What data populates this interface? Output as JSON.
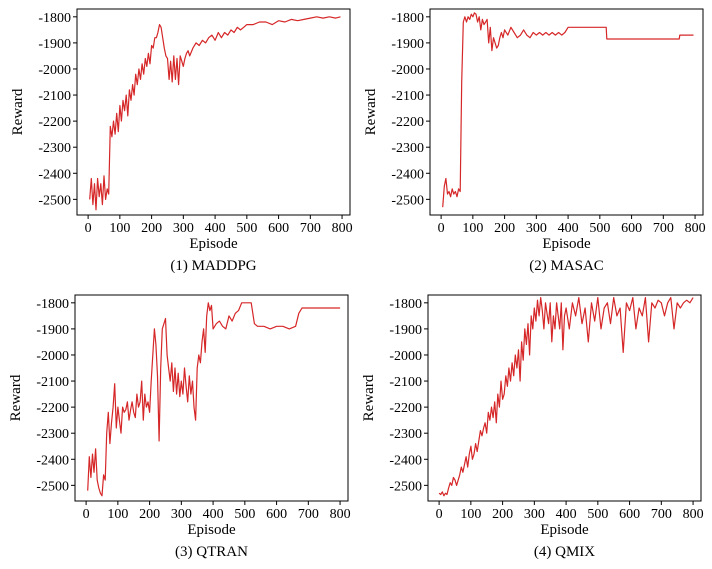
{
  "chart_data": [
    {
      "type": "line",
      "caption": "(1) MADDPG",
      "xlabel": "Episode",
      "ylabel": "Reward",
      "xlim": [
        -35,
        825
      ],
      "ylim": [
        -2560,
        -1770
      ],
      "xticks": [
        0,
        100,
        200,
        300,
        400,
        500,
        600,
        700,
        800
      ],
      "yticks": [
        -2500,
        -2400,
        -2300,
        -2200,
        -2100,
        -2000,
        -1900,
        -1800
      ],
      "xtick_labels": [
        "0",
        "100",
        "200",
        "300",
        "400",
        "500",
        "600",
        "700",
        "800"
      ],
      "ytick_labels": [
        "-2500",
        "-2400",
        "-2300",
        "-2200",
        "-2100",
        "-2000",
        "-1900",
        "-1800"
      ],
      "color": "#d62728",
      "series": [
        {
          "name": "MADDPG",
          "x": [
            5,
            10,
            15,
            20,
            25,
            30,
            35,
            40,
            45,
            50,
            55,
            60,
            65,
            70,
            75,
            80,
            85,
            90,
            95,
            100,
            105,
            110,
            115,
            120,
            125,
            130,
            135,
            140,
            145,
            150,
            155,
            160,
            165,
            170,
            175,
            180,
            185,
            190,
            195,
            200,
            205,
            210,
            215,
            220,
            225,
            230,
            235,
            240,
            245,
            250,
            255,
            260,
            265,
            270,
            275,
            280,
            285,
            290,
            295,
            300,
            305,
            310,
            315,
            320,
            330,
            340,
            350,
            360,
            370,
            380,
            390,
            400,
            410,
            420,
            430,
            440,
            450,
            460,
            470,
            480,
            490,
            500,
            520,
            540,
            560,
            580,
            600,
            620,
            640,
            660,
            680,
            700,
            720,
            740,
            760,
            780,
            795
          ],
          "values": [
            -2500,
            -2420,
            -2520,
            -2440,
            -2540,
            -2420,
            -2490,
            -2440,
            -2520,
            -2410,
            -2500,
            -2460,
            -2480,
            -2220,
            -2260,
            -2200,
            -2250,
            -2170,
            -2240,
            -2140,
            -2200,
            -2120,
            -2160,
            -2100,
            -2180,
            -2080,
            -2120,
            -2060,
            -2100,
            -2020,
            -2060,
            -2000,
            -2040,
            -1980,
            -2020,
            -1960,
            -1990,
            -1940,
            -1980,
            -1910,
            -1920,
            -1880,
            -1880,
            -1860,
            -1830,
            -1840,
            -1880,
            -1920,
            -1950,
            -1960,
            -2040,
            -1970,
            -2050,
            -1950,
            -2040,
            -1960,
            -2060,
            -1950,
            -1970,
            -1990,
            -1960,
            -1940,
            -1930,
            -1950,
            -1920,
            -1900,
            -1910,
            -1890,
            -1900,
            -1880,
            -1870,
            -1890,
            -1860,
            -1880,
            -1860,
            -1870,
            -1850,
            -1860,
            -1840,
            -1850,
            -1840,
            -1830,
            -1830,
            -1820,
            -1820,
            -1830,
            -1815,
            -1820,
            -1810,
            -1815,
            -1810,
            -1805,
            -1800,
            -1805,
            -1800,
            -1805,
            -1800
          ]
        }
      ]
    },
    {
      "type": "line",
      "caption": "(2) MASAC",
      "xlabel": "Episode",
      "ylabel": "Reward",
      "xlim": [
        -35,
        825
      ],
      "ylim": [
        -2560,
        -1770
      ],
      "xticks": [
        0,
        100,
        200,
        300,
        400,
        500,
        600,
        700,
        800
      ],
      "yticks": [
        -2500,
        -2400,
        -2300,
        -2200,
        -2100,
        -2000,
        -1900,
        -1800
      ],
      "xtick_labels": [
        "0",
        "100",
        "200",
        "300",
        "400",
        "500",
        "600",
        "700",
        "800"
      ],
      "ytick_labels": [
        "-2500",
        "-2400",
        "-2300",
        "-2200",
        "-2100",
        "-2000",
        "-1900",
        "-1800"
      ],
      "color": "#d62728",
      "series": [
        {
          "name": "MASAC",
          "x": [
            5,
            10,
            15,
            20,
            25,
            30,
            35,
            40,
            45,
            50,
            55,
            60,
            65,
            70,
            75,
            80,
            85,
            90,
            95,
            100,
            105,
            110,
            115,
            120,
            125,
            130,
            135,
            140,
            145,
            150,
            155,
            160,
            165,
            170,
            175,
            180,
            185,
            190,
            195,
            200,
            210,
            220,
            230,
            240,
            250,
            260,
            270,
            280,
            290,
            300,
            310,
            320,
            330,
            340,
            350,
            360,
            370,
            380,
            390,
            400,
            410,
            520,
            522,
            530,
            540,
            560,
            600,
            700,
            750,
            752,
            760,
            780,
            795
          ],
          "values": [
            -2530,
            -2450,
            -2420,
            -2480,
            -2470,
            -2490,
            -2460,
            -2480,
            -2470,
            -2490,
            -2460,
            -2470,
            -2050,
            -1820,
            -1800,
            -1820,
            -1800,
            -1810,
            -1790,
            -1800,
            -1785,
            -1790,
            -1820,
            -1800,
            -1850,
            -1810,
            -1830,
            -1820,
            -1810,
            -1900,
            -1840,
            -1930,
            -1880,
            -1900,
            -1920,
            -1910,
            -1880,
            -1860,
            -1880,
            -1850,
            -1870,
            -1840,
            -1860,
            -1880,
            -1870,
            -1850,
            -1870,
            -1880,
            -1860,
            -1870,
            -1860,
            -1870,
            -1860,
            -1870,
            -1860,
            -1870,
            -1860,
            -1870,
            -1860,
            -1840,
            -1840,
            -1840,
            -1885,
            -1885,
            -1885,
            -1885,
            -1885,
            -1885,
            -1885,
            -1870,
            -1870,
            -1870,
            -1870
          ]
        }
      ]
    },
    {
      "type": "line",
      "caption": "(3) QTRAN",
      "xlabel": "Episode",
      "ylabel": "Reward",
      "xlim": [
        -35,
        825
      ],
      "ylim": [
        -2560,
        -1770
      ],
      "xticks": [
        0,
        100,
        200,
        300,
        400,
        500,
        600,
        700,
        800
      ],
      "yticks": [
        -2500,
        -2400,
        -2300,
        -2200,
        -2100,
        -2000,
        -1900,
        -1800
      ],
      "xtick_labels": [
        "0",
        "100",
        "200",
        "300",
        "400",
        "500",
        "600",
        "700",
        "800"
      ],
      "ytick_labels": [
        "-2500",
        "-2400",
        "-2300",
        "-2200",
        "-2100",
        "-2000",
        "-1900",
        "-1800"
      ],
      "color": "#d62728",
      "series": [
        {
          "name": "QTRAN",
          "x": [
            5,
            10,
            15,
            20,
            25,
            30,
            35,
            40,
            45,
            50,
            55,
            60,
            65,
            70,
            75,
            80,
            85,
            90,
            95,
            100,
            105,
            110,
            115,
            120,
            125,
            130,
            135,
            140,
            145,
            150,
            155,
            160,
            165,
            170,
            175,
            180,
            185,
            190,
            195,
            200,
            205,
            210,
            215,
            220,
            225,
            230,
            235,
            240,
            245,
            250,
            255,
            260,
            265,
            270,
            275,
            280,
            285,
            290,
            295,
            300,
            305,
            310,
            315,
            320,
            325,
            330,
            335,
            340,
            345,
            350,
            355,
            360,
            365,
            370,
            375,
            380,
            385,
            390,
            395,
            400,
            410,
            420,
            430,
            440,
            450,
            460,
            470,
            480,
            490,
            500,
            510,
            520,
            530,
            540,
            560,
            580,
            600,
            620,
            640,
            660,
            670,
            680,
            700,
            720,
            740,
            760,
            780,
            800
          ],
          "values": [
            -2520,
            -2390,
            -2470,
            -2380,
            -2450,
            -2360,
            -2480,
            -2510,
            -2530,
            -2540,
            -2460,
            -2480,
            -2300,
            -2220,
            -2340,
            -2260,
            -2200,
            -2110,
            -2280,
            -2200,
            -2250,
            -2300,
            -2200,
            -2220,
            -2210,
            -2180,
            -2250,
            -2210,
            -2180,
            -2220,
            -2240,
            -2150,
            -2200,
            -2180,
            -2100,
            -2250,
            -2150,
            -2200,
            -2180,
            -2220,
            -2100,
            -2000,
            -1900,
            -1960,
            -2080,
            -2330,
            -2050,
            -1900,
            -1880,
            -1860,
            -2000,
            -2050,
            -2100,
            -2030,
            -2140,
            -2050,
            -2150,
            -2070,
            -2160,
            -2100,
            -2150,
            -2050,
            -2120,
            -2180,
            -2080,
            -2150,
            -2100,
            -2200,
            -2250,
            -2050,
            -2000,
            -2030,
            -1950,
            -1900,
            -1990,
            -1850,
            -1800,
            -1830,
            -1810,
            -1900,
            -1880,
            -1870,
            -1890,
            -1900,
            -1850,
            -1870,
            -1840,
            -1830,
            -1800,
            -1800,
            -1800,
            -1800,
            -1880,
            -1890,
            -1890,
            -1900,
            -1890,
            -1890,
            -1900,
            -1890,
            -1840,
            -1820,
            -1820,
            -1820,
            -1820,
            -1820,
            -1820,
            -1820
          ]
        }
      ]
    },
    {
      "type": "line",
      "caption": "(4) QMIX",
      "xlabel": "Episode",
      "ylabel": "Reward",
      "xlim": [
        -35,
        825
      ],
      "ylim": [
        -2560,
        -1770
      ],
      "xticks": [
        0,
        100,
        200,
        300,
        400,
        500,
        600,
        700,
        800
      ],
      "yticks": [
        -2500,
        -2400,
        -2300,
        -2200,
        -2100,
        -2000,
        -1900,
        -1800
      ],
      "xtick_labels": [
        "0",
        "100",
        "200",
        "300",
        "400",
        "500",
        "600",
        "700",
        "800"
      ],
      "ytick_labels": [
        "-2500",
        "-2400",
        "-2300",
        "-2200",
        "-2100",
        "-2000",
        "-1900",
        "-1800"
      ],
      "color": "#d62728",
      "series": [
        {
          "name": "QMIX",
          "x": [
            0,
            5,
            10,
            15,
            20,
            25,
            30,
            35,
            40,
            45,
            50,
            55,
            60,
            65,
            70,
            75,
            80,
            85,
            90,
            95,
            100,
            105,
            110,
            115,
            120,
            125,
            130,
            135,
            140,
            145,
            150,
            155,
            160,
            165,
            170,
            175,
            180,
            185,
            190,
            195,
            200,
            205,
            210,
            215,
            220,
            225,
            230,
            235,
            240,
            245,
            250,
            255,
            260,
            265,
            270,
            275,
            280,
            285,
            290,
            295,
            300,
            305,
            310,
            315,
            320,
            325,
            330,
            335,
            340,
            345,
            350,
            355,
            360,
            365,
            370,
            375,
            380,
            385,
            390,
            395,
            400,
            410,
            420,
            430,
            440,
            450,
            460,
            470,
            480,
            490,
            500,
            510,
            520,
            530,
            540,
            550,
            560,
            570,
            580,
            590,
            600,
            610,
            620,
            630,
            640,
            650,
            660,
            670,
            680,
            690,
            700,
            710,
            720,
            730,
            740,
            750,
            760,
            770,
            780,
            790,
            800
          ],
          "values": [
            -2530,
            -2535,
            -2525,
            -2540,
            -2530,
            -2535,
            -2510,
            -2490,
            -2500,
            -2470,
            -2480,
            -2500,
            -2480,
            -2460,
            -2430,
            -2450,
            -2420,
            -2390,
            -2430,
            -2380,
            -2350,
            -2400,
            -2380,
            -2340,
            -2370,
            -2330,
            -2290,
            -2310,
            -2280,
            -2260,
            -2300,
            -2220,
            -2250,
            -2200,
            -2240,
            -2180,
            -2260,
            -2150,
            -2200,
            -2100,
            -2170,
            -2150,
            -2080,
            -2120,
            -2050,
            -2100,
            -2030,
            -2080,
            -2000,
            -2050,
            -1980,
            -2100,
            -1950,
            -2020,
            -1900,
            -1960,
            -1880,
            -2000,
            -1850,
            -1900,
            -1820,
            -1870,
            -1790,
            -1850,
            -1780,
            -1830,
            -1900,
            -1800,
            -1840,
            -1880,
            -1800,
            -1950,
            -1850,
            -1900,
            -1800,
            -1850,
            -1900,
            -1800,
            -1980,
            -1850,
            -1820,
            -1900,
            -1800,
            -1850,
            -1780,
            -1880,
            -1820,
            -1950,
            -1800,
            -1870,
            -1780,
            -1900,
            -1820,
            -1800,
            -1880,
            -1780,
            -1850,
            -1820,
            -1990,
            -1800,
            -1830,
            -1780,
            -1900,
            -1820,
            -1850,
            -1780,
            -1950,
            -1800,
            -1820,
            -1790,
            -1800,
            -1850,
            -1800,
            -1780,
            -1900,
            -1800,
            -1820,
            -1800,
            -1790,
            -1800,
            -1780
          ]
        }
      ]
    }
  ]
}
